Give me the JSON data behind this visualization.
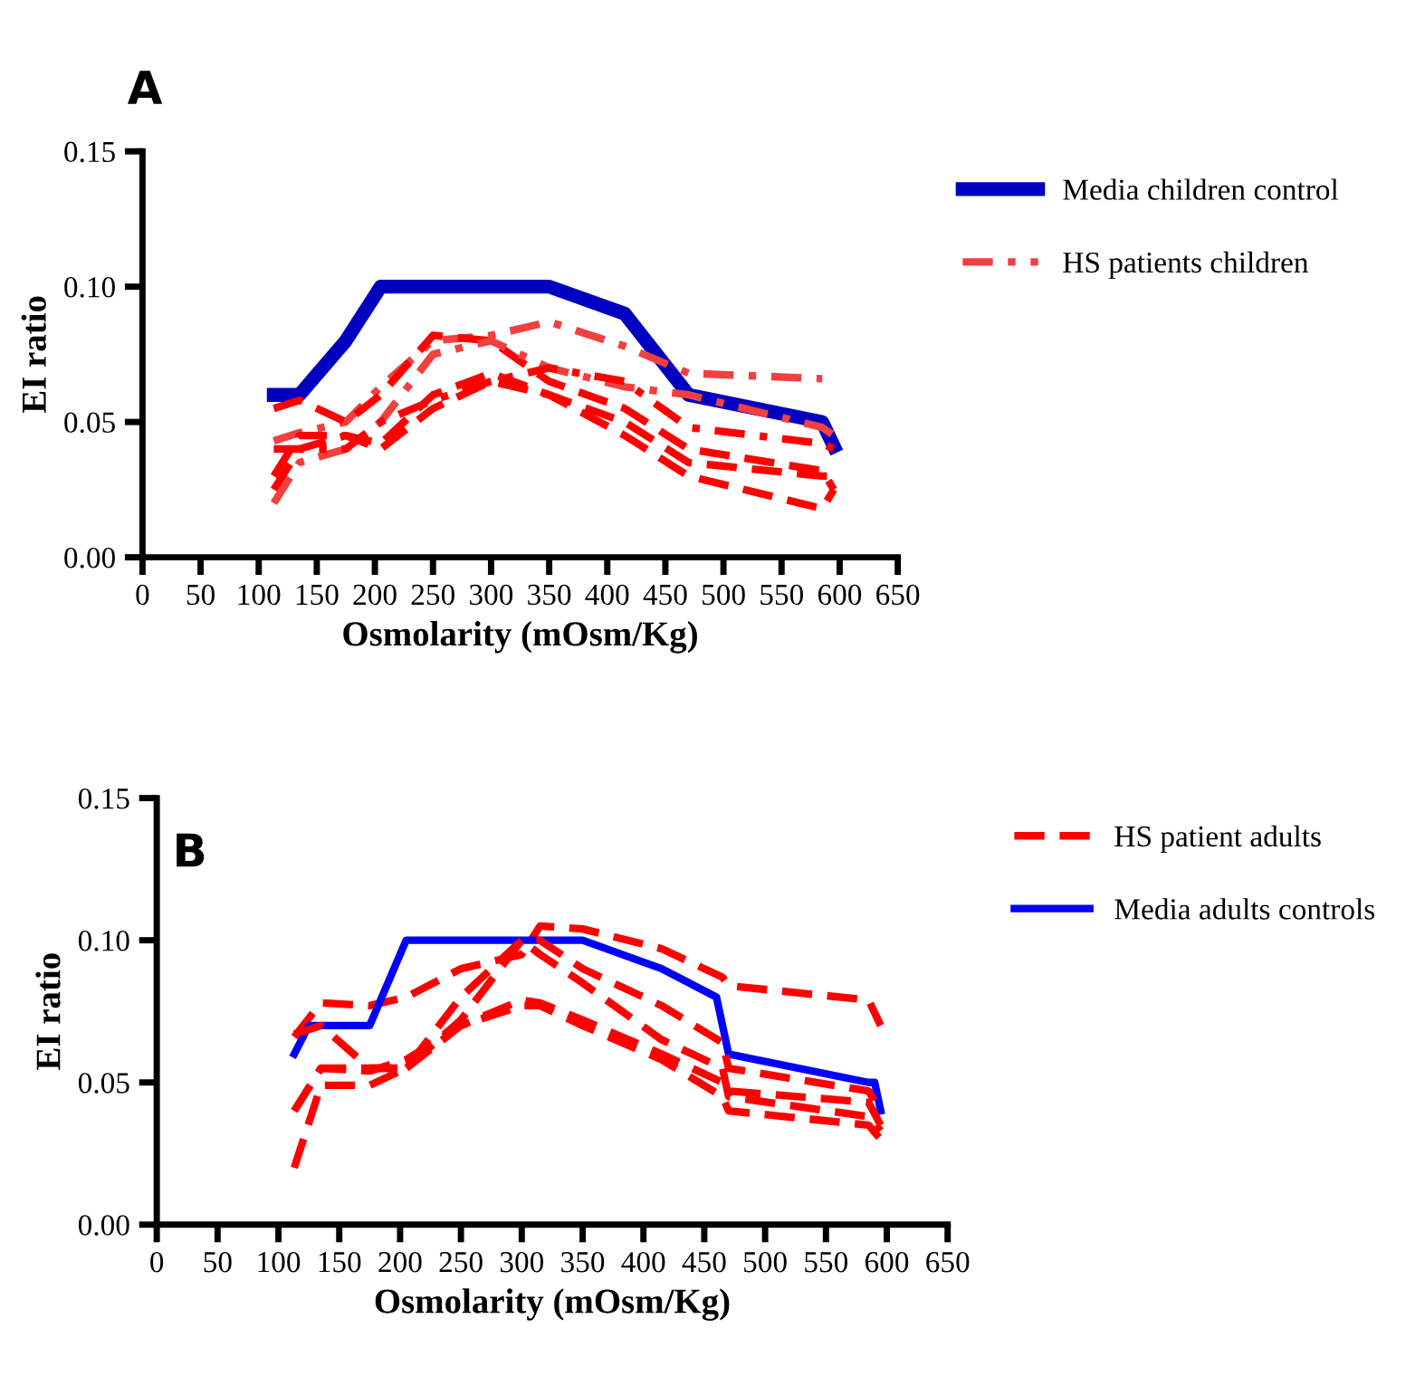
{
  "chart_data": [
    {
      "type": "line",
      "title": "A",
      "xlabel": "Osmolarity (mOsm/Kg)",
      "ylabel": "EI ratio",
      "xlim": [
        0,
        650
      ],
      "xticks": [
        0,
        50,
        100,
        150,
        200,
        250,
        300,
        350,
        400,
        450,
        500,
        550,
        600,
        650
      ],
      "ylim": [
        0,
        0.15
      ],
      "yticks": [
        {
          "value": 0,
          "label": "0.00"
        },
        {
          "value": 0.05,
          "label": "0.05"
        },
        {
          "value": 0.1,
          "label": "0.10"
        },
        {
          "value": 0.15,
          "label": "0.15"
        }
      ],
      "grid": false,
      "legend": "top right",
      "marker": "none",
      "x": [
        113,
        135,
        175,
        205,
        250,
        300,
        350,
        415,
        470,
        585,
        595
      ],
      "series": [
        {
          "name": "Media children control",
          "color": "#0000c0",
          "line_style": "solid",
          "values": [
            0.06,
            0.06,
            0.08,
            0.1,
            0.1,
            0.1,
            0.1,
            0.09,
            0.06,
            0.05,
            0.041
          ]
        },
        {
          "name": "HS patients children",
          "color": "#f04040",
          "line_style": "dashdot",
          "values": [
            0.043,
            0.046,
            0.05,
            0.063,
            0.08,
            0.082,
            0.087,
            0.078,
            0.068,
            0.066,
            null
          ]
        },
        {
          "color": "#ff0000",
          "line_style": "dashed",
          "values": [
            0.055,
            0.058,
            0.05,
            0.06,
            0.082,
            0.08,
            0.065,
            0.055,
            0.04,
            0.032,
            0.025
          ]
        },
        {
          "color": "#ff0000",
          "line_style": "dashed",
          "values": [
            0.03,
            0.045,
            0.045,
            0.042,
            0.06,
            0.068,
            0.06,
            0.045,
            0.03,
            0.018,
            0.025
          ]
        },
        {
          "color": "#f04040",
          "line_style": "dashdot",
          "values": [
            0.02,
            0.035,
            0.04,
            0.05,
            0.075,
            0.08,
            0.07,
            0.063,
            0.06,
            0.048,
            0.045
          ]
        },
        {
          "color": "#ff0000",
          "line_style": "dashdot",
          "values": [
            0.04,
            0.04,
            0.04,
            0.05,
            0.058,
            0.065,
            0.07,
            0.065,
            0.048,
            0.042,
            0.04
          ]
        },
        {
          "color": "#ff0000",
          "line_style": "dashed",
          "values": [
            0.025,
            0.04,
            0.045,
            0.04,
            0.055,
            0.065,
            0.06,
            0.05,
            0.035,
            0.03,
            0.03
          ]
        }
      ]
    },
    {
      "type": "line",
      "title": "B",
      "xlabel": "Osmolarity (mOsm/Kg)",
      "ylabel": "EI ratio",
      "xlim": [
        0,
        650
      ],
      "xticks": [
        0,
        50,
        100,
        150,
        200,
        250,
        300,
        350,
        400,
        450,
        500,
        550,
        600,
        650
      ],
      "ylim": [
        0,
        0.15
      ],
      "yticks": [
        {
          "value": 0,
          "label": "0.00"
        },
        {
          "value": 0.05,
          "label": "0.05"
        },
        {
          "value": 0.1,
          "label": "0.10"
        },
        {
          "value": 0.15,
          "label": "0.15"
        }
      ],
      "grid": false,
      "legend": "top right",
      "marker": "none",
      "x": [
        113,
        135,
        175,
        205,
        250,
        300,
        315,
        350,
        415,
        465,
        470,
        585,
        595
      ],
      "series": [
        {
          "name": "HS patient adults",
          "color": "#ff0000",
          "line_style": "dashed",
          "values": [
            0.066,
            0.078,
            0.077,
            0.08,
            0.09,
            0.095,
            0.105,
            0.104,
            0.097,
            0.087,
            0.084,
            0.079,
            0.07
          ]
        },
        {
          "name": "Media adults controls",
          "color": "#0000ff",
          "line_style": "solid",
          "x": [
            113,
            125,
            175,
            205,
            250,
            300,
            350,
            415,
            460,
            470,
            585,
            590,
            595
          ],
          "values": [
            0.06,
            0.07,
            0.07,
            0.1,
            0.1,
            0.1,
            0.1,
            0.09,
            0.08,
            0.06,
            0.05,
            0.05,
            0.04
          ]
        },
        {
          "color": "#ff0000",
          "line_style": "dashed",
          "values": [
            0.067,
            0.07,
            0.055,
            0.055,
            0.08,
            0.1,
            0.1,
            0.09,
            0.077,
            0.064,
            0.055,
            0.047,
            0.04
          ]
        },
        {
          "color": "#ff0000",
          "line_style": "dashed",
          "values": [
            0.04,
            0.055,
            0.054,
            0.058,
            0.07,
            0.079,
            0.078,
            0.072,
            0.06,
            0.05,
            0.047,
            0.043,
            0.035
          ]
        },
        {
          "color": "#ff0000",
          "line_style": "dashed",
          "values": [
            0.02,
            0.049,
            0.049,
            0.055,
            0.072,
            0.1,
            0.095,
            0.085,
            0.065,
            0.055,
            0.045,
            0.038,
            0.033
          ]
        },
        {
          "color": "#ff0000",
          "line_style": "dashed",
          "values": [
            0.04,
            0.055,
            0.055,
            0.055,
            0.07,
            0.077,
            0.077,
            0.07,
            0.058,
            0.045,
            0.04,
            0.035,
            0.03
          ]
        }
      ]
    }
  ]
}
